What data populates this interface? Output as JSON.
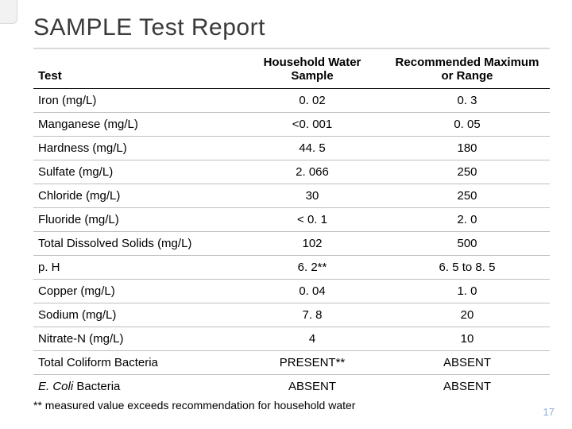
{
  "title": "SAMPLE Test Report",
  "table": {
    "columns": [
      {
        "label": "Test",
        "align": "left"
      },
      {
        "label": "Household Water Sample",
        "align": "center"
      },
      {
        "label": "Recommended Maximum or Range",
        "align": "center"
      }
    ],
    "col_widths_pct": [
      40,
      28,
      32
    ],
    "header_border_color": "#000000",
    "row_border_color": "#bfbfbf",
    "text_color": "#000000",
    "header_fontsize": 15,
    "cell_fontsize": 15,
    "rows": [
      {
        "test": "Iron (mg/L)",
        "sample": "0. 02",
        "recommended": "0. 3"
      },
      {
        "test": "Manganese (mg/L)",
        "sample": "<0. 001",
        "recommended": "0. 05"
      },
      {
        "test": "Hardness (mg/L)",
        "sample": "44. 5",
        "recommended": "180"
      },
      {
        "test": "Sulfate (mg/L)",
        "sample": "2. 066",
        "recommended": "250"
      },
      {
        "test": "Chloride (mg/L)",
        "sample": "30",
        "recommended": "250"
      },
      {
        "test": "Fluoride (mg/L)",
        "sample": "< 0. 1",
        "recommended": "2. 0"
      },
      {
        "test": "Total Dissolved Solids (mg/L)",
        "sample": "102",
        "recommended": "500"
      },
      {
        "test": "p. H",
        "sample": "6. 2**",
        "recommended": "6. 5 to 8. 5"
      },
      {
        "test": "Copper (mg/L)",
        "sample": "0. 04",
        "recommended": "1. 0"
      },
      {
        "test": "Sodium (mg/L)",
        "sample": "7. 8",
        "recommended": "20"
      },
      {
        "test": "Nitrate-N (mg/L)",
        "sample": "4",
        "recommended": "10"
      },
      {
        "test": "Total Coliform Bacteria",
        "sample": "PRESENT**",
        "recommended": "ABSENT"
      },
      {
        "test": "E. Coli Bacteria",
        "test_italic_prefix": "E. Coli",
        "test_rest": " Bacteria",
        "sample": "ABSENT",
        "recommended": "ABSENT"
      }
    ]
  },
  "footnote": "** measured value exceeds recommendation for household water",
  "page_number": "17",
  "colors": {
    "background": "#ffffff",
    "title_text": "#3a3a3a",
    "title_rule": "#d9d9d9",
    "page_number": "#8faadc",
    "side_tab_bg": "#f2f2f2",
    "side_tab_border": "#d9d9d9"
  },
  "fontsizes": {
    "title": 30,
    "footnote": 14,
    "page_number": 13
  }
}
